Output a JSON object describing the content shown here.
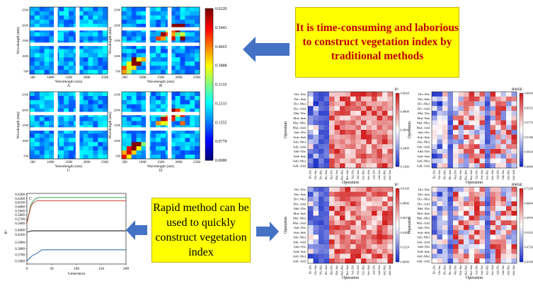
{
  "callouts": {
    "top_text": "It is time-consuming and laborious to construct vegetation index by traditional methods",
    "bottom_text": "Rapid method can be used to quickly construct vegetation index"
  },
  "colors": {
    "callout_bg": "#ffff00",
    "callout_top_text": "#c00000",
    "arrow": "#4472c4",
    "heat_low": "#2030c0",
    "heat_high": "#d02020"
  },
  "matrix_panels": {
    "ylabel": "Wavelength (nm)",
    "xlabel": "Wavelength (nm)",
    "x_ticks": [
      "500",
      "1000",
      "1500",
      "2000",
      "2500"
    ],
    "y_ticks": [
      "2500",
      "2000",
      "1500",
      "1000",
      "500"
    ],
    "letters": [
      "A",
      "B",
      "C",
      "D"
    ],
    "colorbar_ticks": [
      "0.6220",
      "0.5443",
      "0.4665",
      "0.3888",
      "0.3110",
      "0.2333",
      "0.1555",
      "0.0778",
      "0.0000"
    ]
  },
  "heatmaps": {
    "ylabel": "Operation",
    "xlabel": "Operation",
    "row_labels": [
      "Div.-Div.",
      "Div.-Sub.",
      "Div.-Mul.",
      "Div.-Add.",
      "Mul.-Div.",
      "Mul.-Sub.",
      "Mul.-Mul.",
      "Mul.-Add.",
      "Sub.-Div.",
      "Sub.-Sub.",
      "Sub.-Mul.",
      "Sub.-Add.",
      "Add.-Div.",
      "Add.-Sub.",
      "Add.-Mul.",
      "Add.-Add."
    ],
    "panels": [
      {
        "title": "R²",
        "cb_ticks": [
          "0.6020",
          "0.4800",
          "0.3600",
          "0.2400",
          "0.1200"
        ]
      },
      {
        "title": "RMSE",
        "cb_ticks": [
          "0.6930",
          "0.6352",
          "0.5774",
          "0.5196",
          "0.4618",
          "0.4040"
        ]
      },
      {
        "title": "R²",
        "cb_ticks": [
          "0.6120",
          "0.4896",
          "0.3672",
          "0.2448",
          "0.1224",
          "0.0000"
        ]
      },
      {
        "title": "RMSE",
        "cb_ticks": [
          "0.7230",
          "0.6604",
          "0.5978",
          "0.5352",
          "0.4726",
          "0.4100"
        ]
      }
    ]
  },
  "chart_data": {
    "type": "line",
    "title": "",
    "panel_letter": "C",
    "xlabel": "Generation",
    "ylabel": "R²",
    "xlim": [
      0,
      200
    ],
    "x_ticks": [
      "0",
      "50",
      "100",
      "150",
      "200"
    ],
    "y_ticks": [
      "0.6300",
      "0.6200",
      "0.6100",
      "0.6000",
      "0.5900",
      "0.5800",
      "0.5700",
      "0.5600",
      "0.4600",
      "0.4500",
      "0.3900",
      "0.3800",
      "0.3700",
      "0.3600"
    ],
    "series": [
      {
        "color": "#1f9a40",
        "x": [
          0,
          8,
          12,
          18,
          25,
          200
        ],
        "y": [
          0.56,
          0.605,
          0.612,
          0.62,
          0.622,
          0.622
        ]
      },
      {
        "color": "#c03020",
        "x": [
          0,
          8,
          12,
          20,
          200
        ],
        "y": [
          0.56,
          0.6,
          0.608,
          0.614,
          0.614
        ]
      },
      {
        "color": "#000000",
        "x": [
          0,
          10,
          200
        ],
        "y": [
          0.455,
          0.458,
          0.458
        ]
      },
      {
        "color": "#1f5fa0",
        "x": [
          0,
          10,
          20,
          30,
          200
        ],
        "y": [
          0.36,
          0.368,
          0.372,
          0.378,
          0.378
        ]
      }
    ]
  }
}
